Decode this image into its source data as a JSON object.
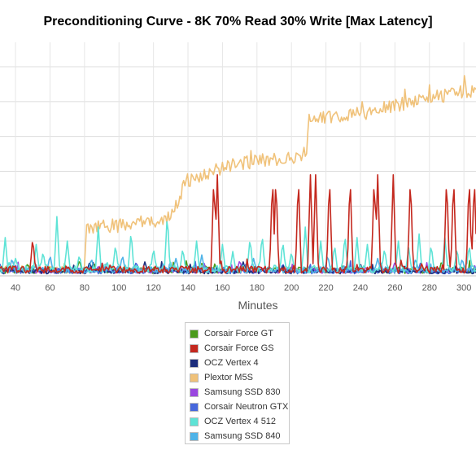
{
  "chart_data": {
    "type": "line",
    "title": "Preconditioning Curve - 8K 70% Read 30% Write [Max Latency]",
    "xlabel": "Minutes",
    "ylabel": "",
    "xlim": [
      31,
      307
    ],
    "ylim": [
      0,
      67
    ],
    "xticks": [
      40,
      60,
      80,
      100,
      120,
      140,
      160,
      180,
      200,
      220,
      240,
      260,
      280,
      300
    ],
    "yticks": [
      0,
      10,
      20,
      30,
      40,
      50,
      60
    ],
    "grid": true,
    "legend_position": "bottom",
    "series": [
      {
        "name": "Corsair Force GT",
        "color": "#4a9a1c",
        "base": 1.6,
        "noise": 0.9,
        "spikes": [
          [
            47,
            3.5
          ],
          [
            77,
            4.5
          ],
          [
            150,
            3.0
          ],
          [
            230,
            3.0
          ],
          [
            287,
            3.0
          ]
        ]
      },
      {
        "name": "Corsair Force GS",
        "color": "#c4281e",
        "base": 1.8,
        "noise": 1.0,
        "spikes": [
          [
            50,
            11
          ],
          [
            155,
            29
          ],
          [
            157,
            29
          ],
          [
            189,
            29
          ],
          [
            191,
            29
          ],
          [
            204,
            29
          ],
          [
            211,
            29
          ],
          [
            214,
            29
          ],
          [
            222,
            29
          ],
          [
            234,
            29
          ],
          [
            248,
            29
          ],
          [
            250,
            29
          ],
          [
            259,
            29
          ],
          [
            269,
            29
          ],
          [
            290,
            29
          ],
          [
            294,
            29
          ],
          [
            303,
            29
          ],
          [
            306,
            29
          ]
        ]
      },
      {
        "name": "OCZ Vertex 4",
        "color": "#1c2d7c",
        "base": 1.3,
        "noise": 0.7,
        "spikes": [
          [
            83,
            4
          ],
          [
            115,
            4
          ],
          [
            172,
            4
          ],
          [
            240,
            3.5
          ]
        ]
      },
      {
        "name": "Plextor M5S",
        "color": "#f0c27a",
        "base": 1.9,
        "noise": 1.1,
        "steps": [
          [
            31,
            1.9
          ],
          [
            80,
            1.9
          ],
          [
            81,
            13.5
          ],
          [
            100,
            14.5
          ],
          [
            118,
            15.5
          ],
          [
            130,
            17
          ],
          [
            136,
            24
          ],
          [
            138,
            27
          ],
          [
            150,
            29
          ],
          [
            160,
            31
          ],
          [
            180,
            33
          ],
          [
            200,
            34
          ],
          [
            209,
            35.5
          ],
          [
            210,
            45
          ],
          [
            240,
            46.5
          ],
          [
            270,
            50
          ],
          [
            300,
            53
          ],
          [
            307,
            53
          ]
        ],
        "noise_high": 2.0
      },
      {
        "name": "Samsung SSD 830",
        "color": "#9a47e0",
        "base": 1.5,
        "noise": 0.8,
        "spikes": [
          [
            90,
            4
          ],
          [
            170,
            4.5
          ],
          [
            260,
            4
          ]
        ]
      },
      {
        "name": "Corsair Neutron GTX",
        "color": "#4667dc",
        "base": 1.4,
        "noise": 0.8,
        "spikes": [
          [
            110,
            4
          ],
          [
            195,
            3.5
          ],
          [
            275,
            4
          ]
        ]
      },
      {
        "name": "OCZ Vertex 4 512",
        "color": "#5ee3d6",
        "base": 2.0,
        "noise": 1.2,
        "spikes": [
          [
            34,
            11
          ],
          [
            40,
            5
          ],
          [
            52,
            9
          ],
          [
            56,
            7
          ],
          [
            64,
            17
          ],
          [
            70,
            10
          ],
          [
            77,
            6
          ],
          [
            88,
            14
          ],
          [
            98,
            9
          ],
          [
            107,
            13
          ],
          [
            120,
            8
          ],
          [
            128,
            18
          ],
          [
            137,
            8
          ],
          [
            145,
            10
          ],
          [
            160,
            9
          ],
          [
            166,
            7
          ],
          [
            176,
            11
          ],
          [
            183,
            12
          ],
          [
            195,
            10
          ],
          [
            200,
            7
          ],
          [
            208,
            14
          ],
          [
            217,
            10
          ],
          [
            225,
            9
          ],
          [
            231,
            12
          ],
          [
            238,
            11
          ],
          [
            244,
            9
          ],
          [
            254,
            8
          ],
          [
            262,
            10
          ],
          [
            268,
            8
          ],
          [
            274,
            12
          ],
          [
            281,
            9
          ],
          [
            289,
            11
          ],
          [
            296,
            8
          ],
          [
            303,
            9
          ]
        ]
      },
      {
        "name": "Samsung SSD 840",
        "color": "#4fb3e8",
        "base": 1.7,
        "noise": 0.9,
        "spikes": [
          [
            38,
            5
          ],
          [
            60,
            6
          ],
          [
            84,
            5
          ],
          [
            102,
            6
          ],
          [
            133,
            5
          ],
          [
            148,
            6
          ],
          [
            178,
            5
          ],
          [
            221,
            6
          ],
          [
            250,
            5
          ],
          [
            272,
            5
          ],
          [
            299,
            5
          ]
        ]
      }
    ]
  }
}
